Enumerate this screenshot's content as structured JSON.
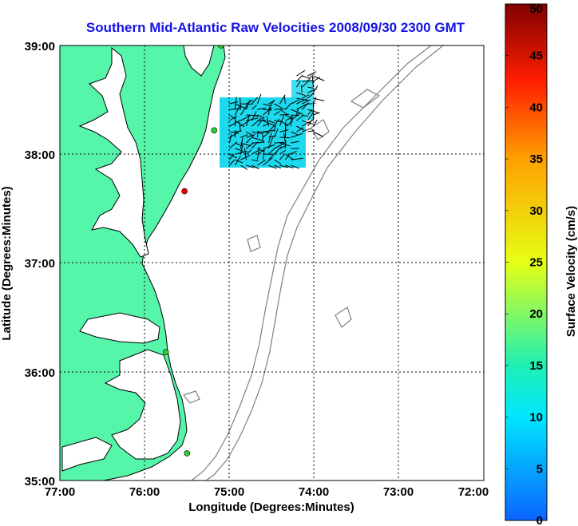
{
  "title": "Southern Mid-Atlantic Raw Velocities 2008/09/30 2300 GMT",
  "map": {
    "x_label": "Longitude (Degrees:Minutes)",
    "y_label": "Latitude (Degrees:Minutes)",
    "lon_ticks": [
      "77:00",
      "76:00",
      "75:00",
      "74:00",
      "73:00",
      "72:00"
    ],
    "lat_ticks": [
      "35:00",
      "36:00",
      "37:00",
      "38:00",
      "39:00"
    ],
    "lon_range": [
      -77,
      -72
    ],
    "lat_range": [
      35,
      39
    ],
    "coverage_lon": [
      -75.0,
      -74.15
    ],
    "coverage_lat": [
      37.85,
      38.5
    ],
    "sites": [
      {
        "lon": -75.1,
        "lat": 39.0,
        "color": "#33cc33"
      },
      {
        "lon": -75.18,
        "lat": 38.22,
        "color": "#33cc33"
      },
      {
        "lon": -75.53,
        "lat": 37.66,
        "color": "#e60000"
      },
      {
        "lon": -75.75,
        "lat": 36.18,
        "color": "#33cc33"
      },
      {
        "lon": -75.5,
        "lat": 35.25,
        "color": "#33cc33"
      }
    ],
    "land_color": "#55f5aa",
    "contour_color": "#808080"
  },
  "colorbar": {
    "label": "Surface Velocity (cm/s)",
    "ticks": [
      "0",
      "5",
      "10",
      "15",
      "20",
      "25",
      "30",
      "35",
      "40",
      "45",
      "50"
    ],
    "min": 0,
    "max": 50
  }
}
